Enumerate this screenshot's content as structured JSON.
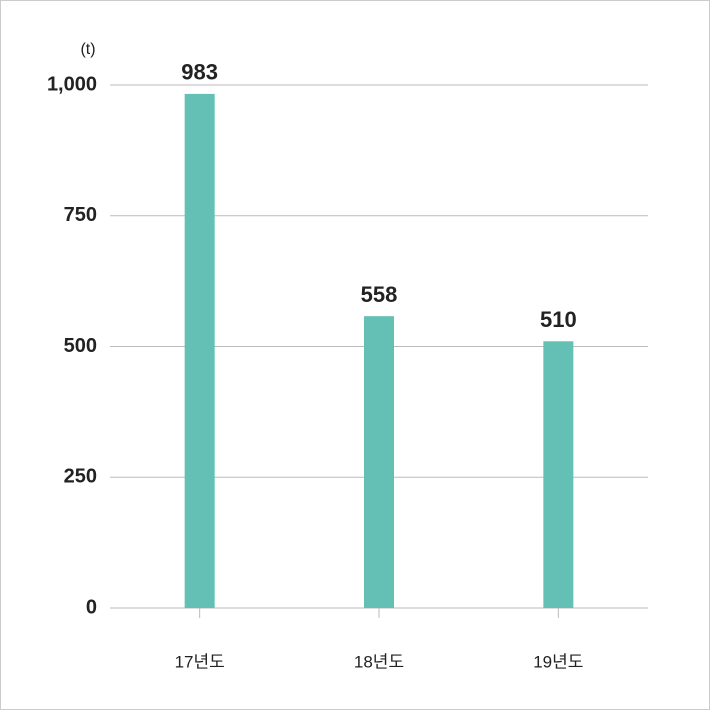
{
  "chart_data": {
    "type": "bar",
    "ylabel": "(t)",
    "categories": [
      "17년도",
      "18년도",
      "19년도"
    ],
    "values": [
      983,
      558,
      510
    ],
    "color": "#64c0b4",
    "ylim": [
      0,
      1000
    ],
    "yticks": [
      0,
      250,
      500,
      750,
      {
        "value": 1000,
        "label": "1,000"
      }
    ],
    "grid": true
  }
}
